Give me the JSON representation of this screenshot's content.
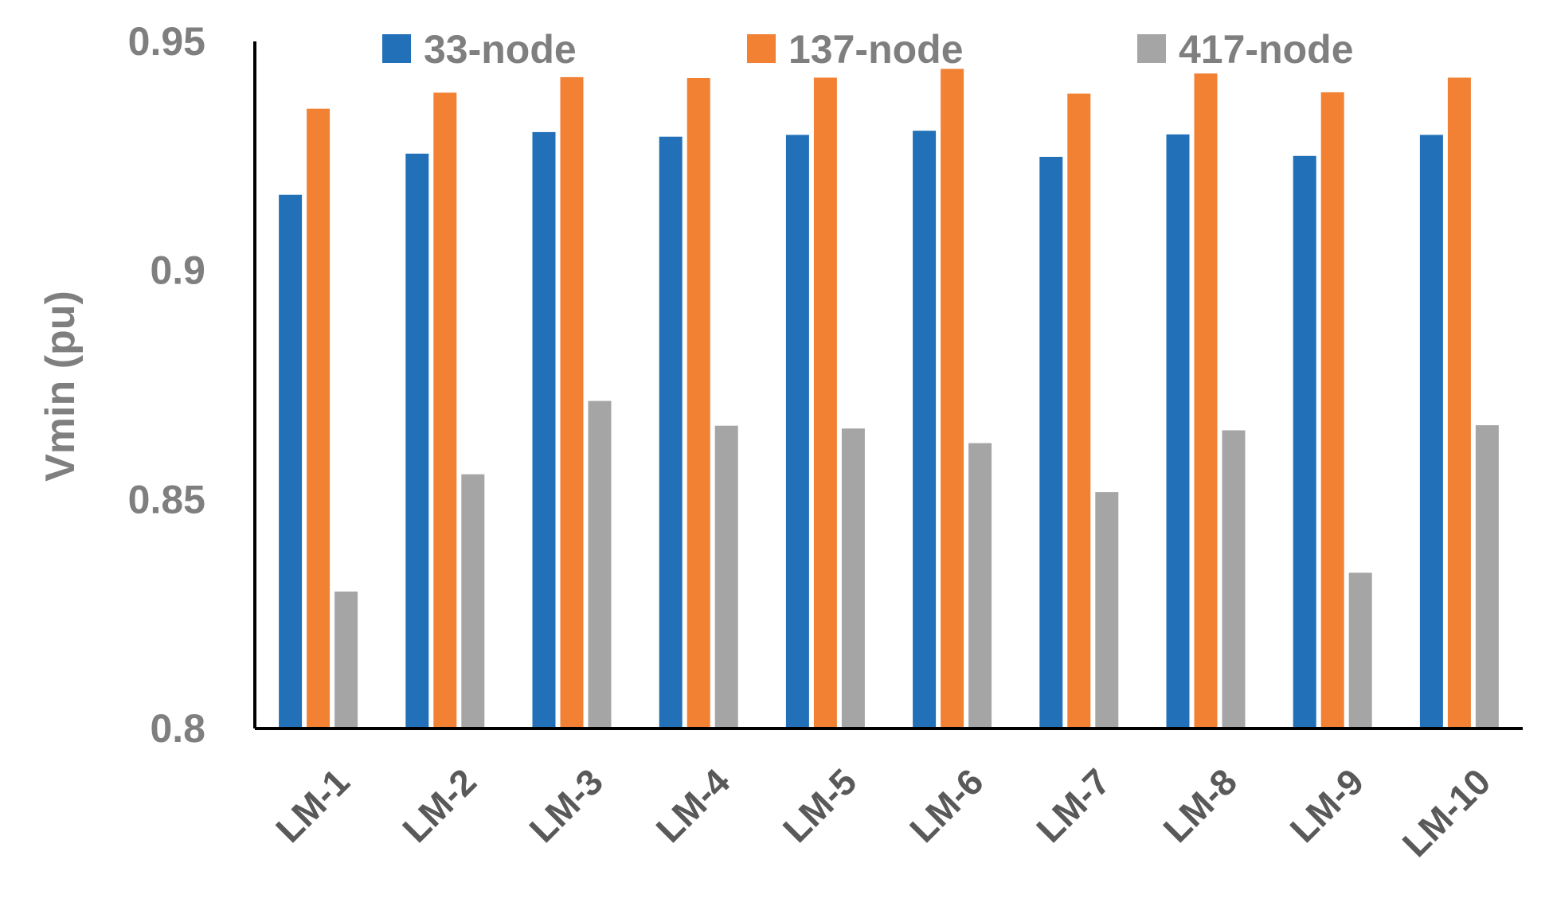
{
  "chart_data": {
    "type": "bar",
    "title": "",
    "xlabel": "",
    "ylabel": "Vmin (pu)",
    "ylim": [
      0.8,
      0.95
    ],
    "yticks": [
      "0.8",
      "0.85",
      "0.9",
      "0.95"
    ],
    "ytick_values": [
      0.8,
      0.85,
      0.9,
      0.95
    ],
    "grid": false,
    "legend_position": "top",
    "categories": [
      "LM-1",
      "LM-2",
      "LM-3",
      "LM-4",
      "LM-5",
      "LM-6",
      "LM-7",
      "LM-8",
      "LM-9",
      "LM-10"
    ],
    "series": [
      {
        "name": "33-node",
        "color": "#2270b8",
        "values": [
          0.9165,
          0.9255,
          0.9302,
          0.9292,
          0.9296,
          0.9305,
          0.9248,
          0.9297,
          0.925,
          0.9296
        ]
      },
      {
        "name": "137-node",
        "color": "#f28134",
        "values": [
          0.9353,
          0.9388,
          0.9422,
          0.942,
          0.9421,
          0.944,
          0.9386,
          0.943,
          0.9389,
          0.9421
        ]
      },
      {
        "name": "417-node",
        "color": "#a5a5a5",
        "values": [
          0.8299,
          0.8555,
          0.8715,
          0.8661,
          0.8655,
          0.8623,
          0.8516,
          0.8651,
          0.834,
          0.8662
        ]
      }
    ]
  }
}
